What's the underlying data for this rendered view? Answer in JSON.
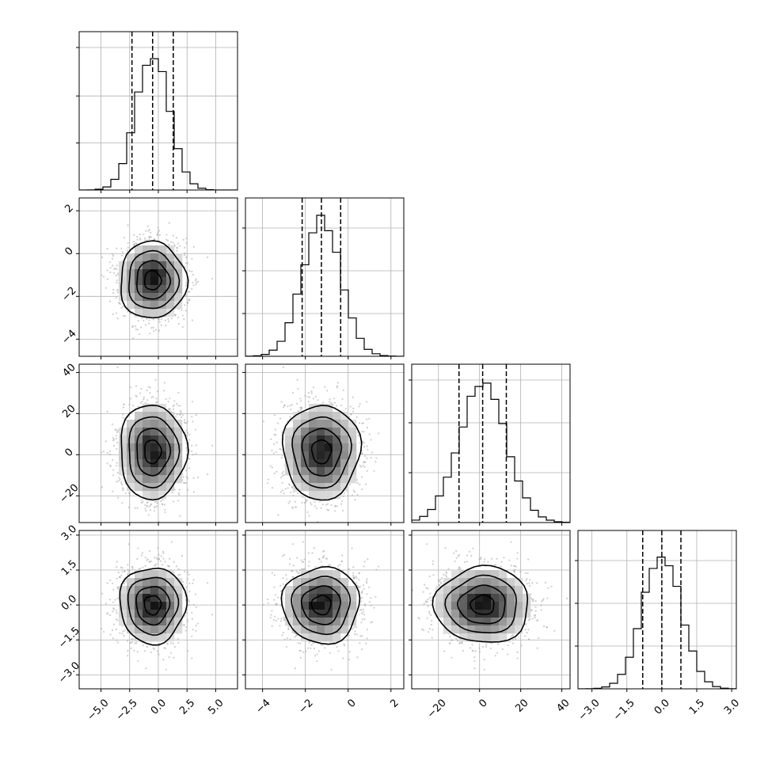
{
  "chart_data": {
    "type": "corner",
    "parameters": [
      {
        "range": [
          -6.9,
          6.9
        ],
        "ticks": [
          -5.0,
          -2.5,
          0.0,
          2.5,
          5.0
        ],
        "tick_labels": [
          "−5.0",
          "−2.5",
          "0.0",
          "2.5",
          "5.0"
        ],
        "mean": -0.5,
        "sd": 1.45,
        "quantiles": [
          -2.3,
          -0.5,
          1.3
        ],
        "hist_max": 1.0,
        "hist_yticks": [
          0.33,
          0.66,
          1.0
        ]
      },
      {
        "range": [
          -4.8,
          2.6
        ],
        "ticks": [
          -4,
          -2,
          0,
          2
        ],
        "tick_labels": [
          "−4",
          "−2",
          "0",
          "2"
        ],
        "mean": -1.25,
        "sd": 0.9,
        "quantiles": [
          -2.15,
          -1.25,
          -0.35
        ],
        "hist_max": 1.0,
        "hist_yticks": [
          0.3,
          0.6,
          0.9
        ]
      },
      {
        "range": [
          -33,
          44
        ],
        "ticks": [
          -20,
          0,
          20,
          40
        ],
        "tick_labels": [
          "−20",
          "0",
          "20",
          "40"
        ],
        "mean": 1.5,
        "sd": 11.5,
        "quantiles": [
          -10,
          1.5,
          13
        ],
        "hist_max": 1.0,
        "hist_yticks": [
          0.35,
          0.7,
          1.0
        ]
      },
      {
        "range": [
          -3.6,
          3.2
        ],
        "ticks": [
          -3.0,
          -1.5,
          0.0,
          1.5,
          3.0
        ],
        "tick_labels": [
          "−3.0",
          "−1.5",
          "0.0",
          "1.5",
          "3.0"
        ],
        "mean": 0.0,
        "sd": 0.82,
        "quantiles": [
          -0.82,
          0.0,
          0.82
        ],
        "hist_max": 1.0,
        "hist_yticks": [
          0.3,
          0.6,
          0.9
        ]
      }
    ],
    "bins": 20,
    "contour_levels_sigma": [
      0.5,
      1.0,
      1.5,
      2.0
    ],
    "grid": true,
    "title": "",
    "colors": {
      "line": "#000000",
      "points": "#9a9a9a",
      "grid": "#b0b0b0"
    }
  }
}
